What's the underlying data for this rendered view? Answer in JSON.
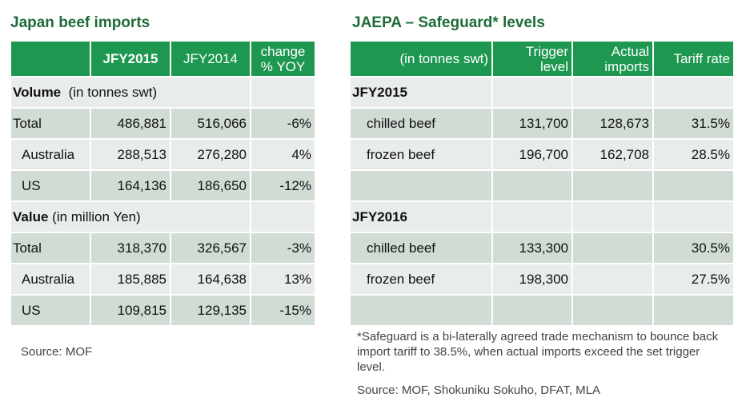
{
  "left": {
    "title": "Japan beef imports",
    "headers": [
      "",
      "JFY2015",
      "JFY2014",
      "change % YOY"
    ],
    "header_lines": {
      "change1": "change",
      "change2": "% YOY"
    },
    "volume_label": "Volume",
    "volume_unit": "(in tonnes swt)",
    "value_label": "Value",
    "value_unit": "(in million Yen)",
    "volume_rows": [
      {
        "name": "Total",
        "a": "486,881",
        "b": "516,066",
        "c": "-6%"
      },
      {
        "name": "Australia",
        "a": "288,513",
        "b": "276,280",
        "c": "4%"
      },
      {
        "name": "US",
        "a": "164,136",
        "b": "186,650",
        "c": "-12%"
      }
    ],
    "value_rows": [
      {
        "name": "Total",
        "a": "318,370",
        "b": "326,567",
        "c": "-3%"
      },
      {
        "name": "Australia",
        "a": "185,885",
        "b": "164,638",
        "c": "13%"
      },
      {
        "name": "US",
        "a": "109,815",
        "b": "129,135",
        "c": "-15%"
      }
    ],
    "source": "Source: MOF"
  },
  "right": {
    "title": "JAEPA – Safeguard* levels",
    "headers": {
      "unit": "(in tonnes swt)",
      "trigger1": "Trigger",
      "trigger2": "level",
      "actual1": "Actual",
      "actual2": "imports",
      "tariff": "Tariff rate"
    },
    "sections": [
      {
        "year": "JFY2015",
        "rows": [
          {
            "name": "chilled beef",
            "trigger": "131,700",
            "actual": "128,673",
            "tariff": "31.5%"
          },
          {
            "name": "frozen beef",
            "trigger": "196,700",
            "actual": "162,708",
            "tariff": "28.5%"
          }
        ]
      },
      {
        "year": "JFY2016",
        "rows": [
          {
            "name": "chilled beef",
            "trigger": "133,300",
            "actual": "",
            "tariff": "30.5%"
          },
          {
            "name": "frozen beef",
            "trigger": "198,300",
            "actual": "",
            "tariff": "27.5%"
          }
        ]
      }
    ],
    "footnote": "*Safeguard is a bi-laterally agreed trade mechanism to bounce back import tariff to 38.5%, when actual imports exceed the set trigger level.",
    "source": "Source: MOF, Shokuniku Sokuho, DFAT, MLA"
  }
}
